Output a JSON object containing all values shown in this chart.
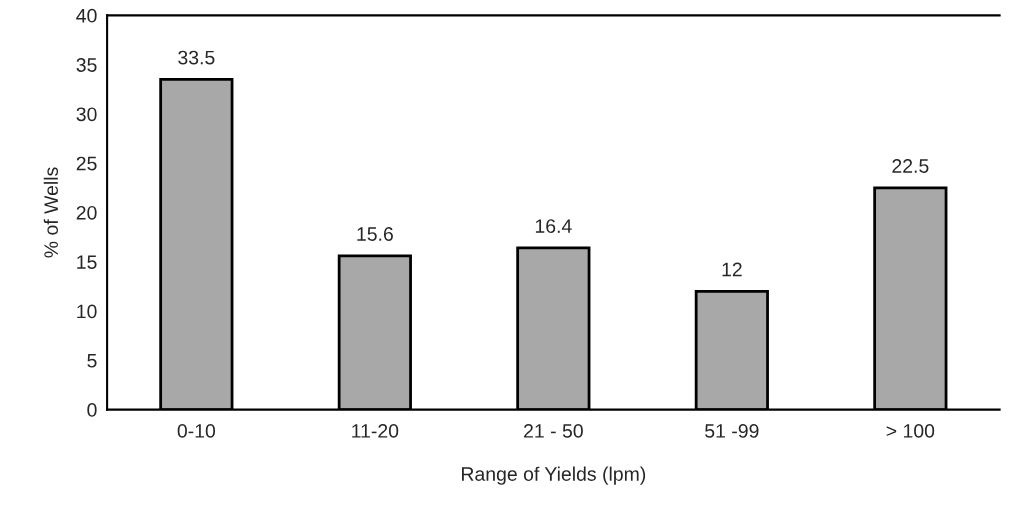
{
  "chart_data": {
    "type": "bar",
    "xlabel": "Range of Yields (lpm)",
    "ylabel": "% of Wells",
    "categories": [
      "0-10",
      "11-20",
      "21 - 50",
      "51 -99",
      "> 100"
    ],
    "values": [
      33.5,
      15.6,
      16.4,
      12,
      22.5
    ],
    "color": "#a8a8a8",
    "ylim": [
      0,
      40
    ],
    "yticks": [
      0,
      5,
      10,
      15,
      20,
      25,
      30,
      35,
      40
    ],
    "grid": false,
    "data_labels": true
  }
}
